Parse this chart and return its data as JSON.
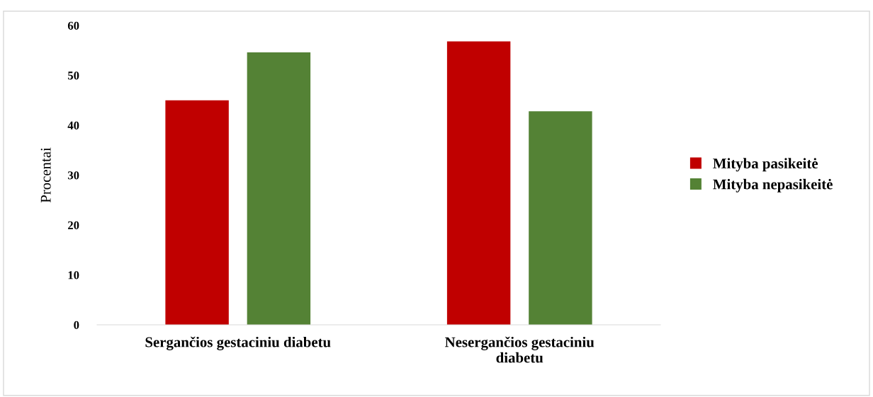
{
  "chart_data": {
    "type": "bar",
    "ylabel": "Procentai",
    "categories": [
      "Sergančios gestaciniu diabetu",
      "Nesergančios gestaciniu\ndiabetu"
    ],
    "series": [
      {
        "name": "Mityba pasikeitė",
        "color": "#c00000",
        "values": [
          45,
          56.8
        ]
      },
      {
        "name": "Mityba nepasikeitė",
        "color": "#548235",
        "values": [
          54.6,
          42.8
        ]
      }
    ],
    "ylim": [
      0,
      60
    ],
    "yticks": [
      0,
      10,
      20,
      30,
      40,
      50,
      60
    ],
    "grid": false,
    "legend": "right"
  }
}
